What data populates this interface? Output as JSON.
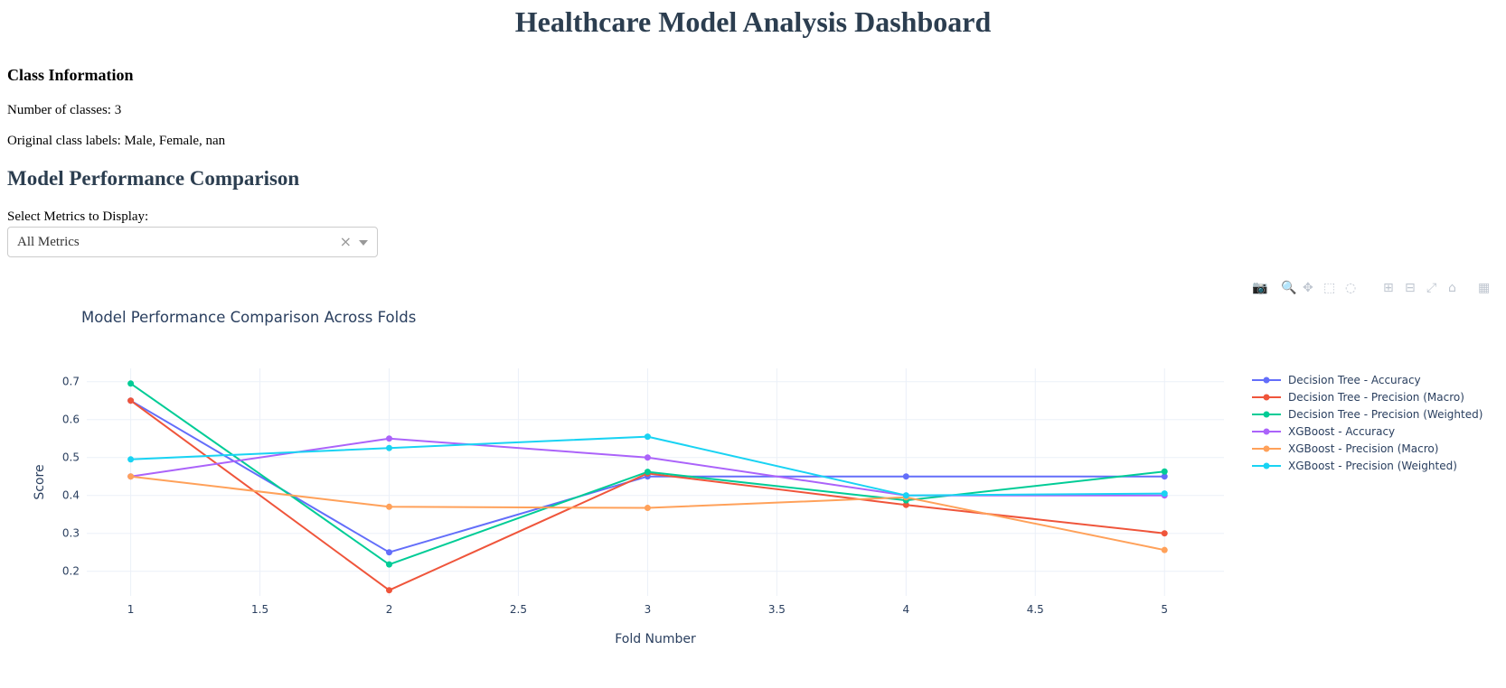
{
  "page": {
    "title": "Healthcare Model Analysis Dashboard"
  },
  "class_info": {
    "heading": "Class Information",
    "num_classes": "Number of classes: 3",
    "labels": "Original class labels: Male, Female, nan"
  },
  "comparison": {
    "heading": "Model Performance Comparison",
    "select_label": "Select Metrics to Display:",
    "select_value": "All Metrics",
    "clear_glyph": "×"
  },
  "modebar": {
    "icons": [
      "camera-icon",
      "zoom-icon",
      "pan-icon",
      "box-select-icon",
      "lasso-select-icon",
      "zoom-in-icon",
      "zoom-out-icon",
      "autoscale-icon",
      "reset-axes-icon",
      "plotly-logo-icon"
    ]
  },
  "chart_data": {
    "type": "line",
    "title": "Model Performance Comparison Across Folds",
    "xlabel": "Fold Number",
    "ylabel": "Score",
    "x": [
      1,
      2,
      3,
      4,
      5
    ],
    "xlim": [
      0.83,
      5.23
    ],
    "ylim": [
      0.135,
      0.735
    ],
    "xticks": [
      1,
      1.5,
      2,
      2.5,
      3,
      3.5,
      4,
      4.5,
      5
    ],
    "yticks": [
      0.2,
      0.3,
      0.4,
      0.5,
      0.6,
      0.7
    ],
    "grid": true,
    "legend_position": "right",
    "series": [
      {
        "name": "Decision Tree - Accuracy",
        "color": "#636efa",
        "values": [
          0.65,
          0.25,
          0.45,
          0.45,
          0.45
        ]
      },
      {
        "name": "Decision Tree - Precision (Macro)",
        "color": "#ef553b",
        "values": [
          0.65,
          0.15,
          0.458,
          0.375,
          0.3
        ]
      },
      {
        "name": "Decision Tree - Precision (Weighted)",
        "color": "#00cc96",
        "values": [
          0.695,
          0.218,
          0.462,
          0.387,
          0.463
        ]
      },
      {
        "name": "XGBoost - Accuracy",
        "color": "#ab63fa",
        "values": [
          0.45,
          0.55,
          0.5,
          0.4,
          0.4
        ]
      },
      {
        "name": "XGBoost - Precision (Macro)",
        "color": "#ffa15a",
        "values": [
          0.45,
          0.37,
          0.367,
          0.395,
          0.256
        ]
      },
      {
        "name": "XGBoost - Precision (Weighted)",
        "color": "#19d3f3",
        "values": [
          0.495,
          0.525,
          0.555,
          0.4,
          0.405
        ]
      }
    ]
  }
}
